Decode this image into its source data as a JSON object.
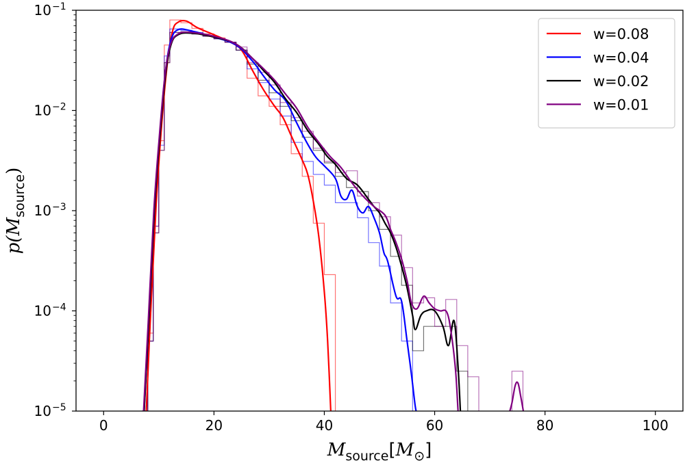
{
  "chart_data": {
    "type": "line",
    "title": "",
    "xlabel": "M_source[M_⊙]",
    "ylabel": "p(M_source)",
    "xlabel_parts": {
      "main": "M",
      "sub": "source",
      "bracket_open": "[",
      "bracket_main": "M",
      "bracket_sub": "⊙",
      "bracket_close": "]"
    },
    "ylabel_parts": {
      "prefix": "p(",
      "main": "M",
      "sub": "source",
      "suffix": ")"
    },
    "xlim": [
      -5,
      105
    ],
    "ylim": [
      1e-05,
      0.1
    ],
    "yscale": "log",
    "x_ticks": [
      0,
      20,
      40,
      60,
      80,
      100
    ],
    "x_tick_labels": [
      "0",
      "20",
      "40",
      "60",
      "80",
      "100"
    ],
    "y_ticks": [
      1e-05,
      0.0001,
      0.001,
      0.01,
      0.1
    ],
    "y_tick_labels": [
      {
        "base": "10",
        "exp": "−5"
      },
      {
        "base": "10",
        "exp": "−4"
      },
      {
        "base": "10",
        "exp": "−3"
      },
      {
        "base": "10",
        "exp": "−2"
      },
      {
        "base": "10",
        "exp": "−1"
      }
    ],
    "grid": false,
    "legend_position": "top-right",
    "series": [
      {
        "name": "w=0.08",
        "color": "#ff0000",
        "kde": [
          [
            7.7,
            1e-05
          ],
          [
            8.5,
            9e-05
          ],
          [
            9.5,
            0.0011
          ],
          [
            10.5,
            0.007
          ],
          [
            11.5,
            0.028
          ],
          [
            12.5,
            0.062
          ],
          [
            13.5,
            0.076
          ],
          [
            15,
            0.078
          ],
          [
            17,
            0.067
          ],
          [
            20,
            0.057
          ],
          [
            23,
            0.048
          ],
          [
            25,
            0.04
          ],
          [
            27,
            0.025
          ],
          [
            29,
            0.016
          ],
          [
            31,
            0.011
          ],
          [
            32.5,
            0.0085
          ],
          [
            34,
            0.0056
          ],
          [
            36,
            0.0032
          ],
          [
            37,
            0.0023
          ],
          [
            38,
            0.00125
          ],
          [
            39,
            0.00055
          ],
          [
            40,
            0.000155
          ],
          [
            40.6,
            5e-05
          ],
          [
            41.2,
            1e-05
          ]
        ],
        "hist_edges": [
          7,
          8,
          9,
          10,
          11,
          12,
          14,
          16,
          18,
          20,
          22,
          24,
          26,
          28,
          30,
          32,
          34,
          36,
          38,
          40,
          42
        ],
        "hist_values": [
          1e-05,
          6e-05,
          0.0007,
          0.005,
          0.045,
          0.08,
          0.075,
          0.066,
          0.058,
          0.053,
          0.048,
          0.04,
          0.021,
          0.014,
          0.011,
          0.0072,
          0.0037,
          0.0022,
          0.00075,
          0.00023
        ]
      },
      {
        "name": "w=0.04",
        "color": "#0000ff",
        "kde": [
          [
            7.3,
            1e-05
          ],
          [
            8.2,
            8e-05
          ],
          [
            9.2,
            0.001
          ],
          [
            10.2,
            0.006
          ],
          [
            11.2,
            0.024
          ],
          [
            12.2,
            0.05
          ],
          [
            13.5,
            0.064
          ],
          [
            16,
            0.062
          ],
          [
            20,
            0.054
          ],
          [
            24,
            0.045
          ],
          [
            27,
            0.031
          ],
          [
            29,
            0.022
          ],
          [
            31,
            0.016
          ],
          [
            33,
            0.0125
          ],
          [
            35,
            0.0075
          ],
          [
            37,
            0.0046
          ],
          [
            38.5,
            0.0034
          ],
          [
            40,
            0.0028
          ],
          [
            42,
            0.0021
          ],
          [
            43,
            0.0014
          ],
          [
            44,
            0.0013
          ],
          [
            45,
            0.0016
          ],
          [
            46,
            0.0011
          ],
          [
            47,
            0.00095
          ],
          [
            48,
            0.0011
          ],
          [
            49,
            0.00085
          ],
          [
            50,
            0.0006
          ],
          [
            50.8,
            0.00038
          ],
          [
            51.5,
            0.00031
          ],
          [
            53,
            0.00014
          ],
          [
            54,
            0.000125
          ],
          [
            55,
            5e-05
          ],
          [
            55.8,
            2.3e-05
          ],
          [
            56.5,
            1.1e-05
          ],
          [
            56.9,
            1e-05
          ]
        ],
        "hist_edges": [
          7,
          8,
          9,
          10,
          11,
          12,
          14,
          16,
          18,
          20,
          22,
          24,
          26,
          28,
          30,
          32,
          34,
          36,
          38,
          40,
          42,
          44,
          46,
          48,
          50,
          52,
          54,
          56
        ],
        "hist_values": [
          1e-05,
          5e-05,
          0.0007,
          0.0045,
          0.035,
          0.065,
          0.063,
          0.06,
          0.056,
          0.052,
          0.048,
          0.04,
          0.026,
          0.019,
          0.013,
          0.0088,
          0.0048,
          0.0031,
          0.0023,
          0.0018,
          0.0012,
          0.0012,
          0.00085,
          0.00048,
          0.00028,
          0.00012,
          5e-05
        ]
      },
      {
        "name": "w=0.02",
        "color": "#000000",
        "kde": [
          [
            7.3,
            1e-05
          ],
          [
            8.2,
            8e-05
          ],
          [
            9.2,
            0.001
          ],
          [
            10.2,
            0.0055
          ],
          [
            11.2,
            0.022
          ],
          [
            12.2,
            0.045
          ],
          [
            13.5,
            0.057
          ],
          [
            16,
            0.059
          ],
          [
            20,
            0.054
          ],
          [
            24,
            0.046
          ],
          [
            27,
            0.033
          ],
          [
            29,
            0.025
          ],
          [
            31,
            0.019
          ],
          [
            33,
            0.013
          ],
          [
            35,
            0.0095
          ],
          [
            37,
            0.0063
          ],
          [
            39,
            0.0046
          ],
          [
            40.5,
            0.0035
          ],
          [
            42,
            0.0029
          ],
          [
            44,
            0.0021
          ],
          [
            46,
            0.0018
          ],
          [
            48,
            0.0013
          ],
          [
            49,
            0.0011
          ],
          [
            50,
            0.00095
          ],
          [
            51,
            0.00075
          ],
          [
            52,
            0.0006
          ],
          [
            53,
            0.00043
          ],
          [
            54,
            0.00028
          ],
          [
            55,
            0.00017
          ],
          [
            56,
            9e-05
          ],
          [
            56.5,
            6.5e-05
          ],
          [
            57.5,
            9e-05
          ],
          [
            58.5,
            0.0001
          ],
          [
            60,
            0.0001
          ],
          [
            61.5,
            7e-05
          ],
          [
            62.5,
            4.5e-05
          ],
          [
            63.5,
            8e-05
          ],
          [
            64.2,
            3e-05
          ],
          [
            64.7,
            1e-05
          ]
        ],
        "hist_edges": [
          7,
          8,
          9,
          10,
          11,
          12,
          14,
          16,
          18,
          20,
          22,
          24,
          26,
          28,
          30,
          32,
          34,
          36,
          38,
          40,
          42,
          44,
          46,
          48,
          50,
          52,
          54,
          56,
          58,
          60,
          62,
          64,
          66
        ],
        "hist_values": [
          1e-05,
          5e-05,
          0.0006,
          0.004,
          0.03,
          0.06,
          0.061,
          0.058,
          0.055,
          0.052,
          0.048,
          0.04,
          0.029,
          0.02,
          0.015,
          0.011,
          0.0079,
          0.0054,
          0.004,
          0.003,
          0.0022,
          0.0017,
          0.00155,
          0.001,
          0.00065,
          0.00035,
          0.00018,
          4e-05,
          7e-05,
          7e-05,
          7e-05,
          2.5e-05
        ]
      },
      {
        "name": "w=0.01",
        "color": "#800080",
        "kde": [
          [
            7.2,
            1e-05
          ],
          [
            8.1,
            8e-05
          ],
          [
            9.1,
            0.001
          ],
          [
            10.1,
            0.0055
          ],
          [
            11.1,
            0.022
          ],
          [
            12.1,
            0.045
          ],
          [
            13.5,
            0.058
          ],
          [
            16,
            0.06
          ],
          [
            20,
            0.055
          ],
          [
            24,
            0.046
          ],
          [
            27,
            0.033
          ],
          [
            29,
            0.026
          ],
          [
            31,
            0.02
          ],
          [
            33,
            0.0145
          ],
          [
            35,
            0.0105
          ],
          [
            37,
            0.0068
          ],
          [
            39,
            0.0048
          ],
          [
            41,
            0.0035
          ],
          [
            43,
            0.0027
          ],
          [
            45,
            0.0019
          ],
          [
            47,
            0.0014
          ],
          [
            49,
            0.0011
          ],
          [
            51,
            0.0009
          ],
          [
            52,
            0.00065
          ],
          [
            53,
            0.00048
          ],
          [
            54,
            0.00033
          ],
          [
            55,
            0.0002
          ],
          [
            55.8,
            0.00012
          ],
          [
            56.8,
            0.000105
          ],
          [
            58,
            0.00014
          ],
          [
            59,
            0.00012
          ],
          [
            60,
            0.000105
          ],
          [
            61,
            0.0001
          ],
          [
            62.2,
            9.7e-05
          ],
          [
            63,
            6e-05
          ],
          [
            63.8,
            2.5e-05
          ],
          [
            64.3,
            1e-05
          ],
          [
            64.6,
            1e-05
          ],
          [
            73.4,
            1e-05
          ],
          [
            74,
            1.2e-05
          ],
          [
            74.6,
            1.8e-05
          ],
          [
            75.1,
            1.9e-05
          ],
          [
            75.6,
            1.4e-05
          ],
          [
            76.2,
            1e-05
          ]
        ],
        "hist_edges": [
          7,
          8,
          9,
          10,
          11,
          12,
          14,
          16,
          18,
          20,
          22,
          24,
          26,
          28,
          30,
          32,
          34,
          36,
          38,
          40,
          42,
          44,
          46,
          48,
          50,
          52,
          54,
          56,
          58,
          60,
          62,
          64,
          66,
          68
        ],
        "hist_values": [
          1e-05,
          5e-05,
          0.0006,
          0.004,
          0.03,
          0.06,
          0.061,
          0.058,
          0.055,
          0.052,
          0.048,
          0.043,
          0.03,
          0.024,
          0.018,
          0.012,
          0.0085,
          0.0062,
          0.0042,
          0.0031,
          0.0024,
          0.0025,
          0.0014,
          0.0012,
          0.00087,
          0.00057,
          0.00027,
          0.00012,
          0.000135,
          7e-05,
          0.00013,
          4.5e-05,
          2.2e-05
        ],
        "hist_extra": {
          "edges": [
            74,
            76
          ],
          "value": 2.5e-05
        }
      }
    ]
  }
}
